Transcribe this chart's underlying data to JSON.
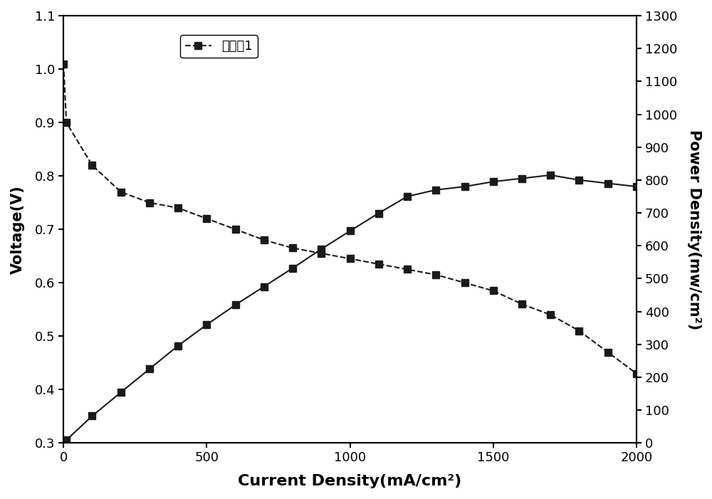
{
  "current_density_voltage": [
    0,
    10,
    100,
    200,
    300,
    400,
    500,
    600,
    700,
    800,
    900,
    1000,
    1100,
    1200,
    1300,
    1400,
    1500,
    1600,
    1700,
    1800,
    1900,
    2000
  ],
  "voltage": [
    1.01,
    0.9,
    0.82,
    0.77,
    0.75,
    0.74,
    0.72,
    0.7,
    0.68,
    0.665,
    0.655,
    0.645,
    0.635,
    0.625,
    0.615,
    0.6,
    0.585,
    0.56,
    0.54,
    0.51,
    0.47,
    0.43
  ],
  "current_density_power": [
    0,
    10,
    100,
    200,
    300,
    400,
    500,
    600,
    700,
    800,
    900,
    1000,
    1100,
    1200,
    1300,
    1400,
    1500,
    1600,
    1700,
    1800,
    1900,
    2000
  ],
  "power_density": [
    0,
    9,
    82,
    154,
    225,
    296,
    360,
    420,
    476,
    532,
    590,
    645,
    699,
    750,
    770,
    780,
    795,
    805,
    815,
    800,
    790,
    780
  ],
  "xlabel": "Current Density(mA/cm²)",
  "ylabel_left": "Voltage(V)",
  "ylabel_right": "Power Density(mw/cm²)",
  "ylim_left": [
    0.3,
    1.1
  ],
  "ylim_right": [
    0,
    1300
  ],
  "xlim": [
    0,
    2000
  ],
  "yticks_left": [
    0.3,
    0.4,
    0.5,
    0.6,
    0.7,
    0.8,
    0.9,
    1.0,
    1.1
  ],
  "yticks_right": [
    0,
    100,
    200,
    300,
    400,
    500,
    600,
    700,
    800,
    900,
    1000,
    1100,
    1200,
    1300
  ],
  "xticks": [
    0,
    500,
    1000,
    1500,
    2000
  ],
  "legend_label": "对比例1",
  "line_color": "#1a1a1a",
  "marker": "s",
  "marker_size": 7,
  "line_style_voltage": "--",
  "line_style_power": "-",
  "background_color": "#ffffff"
}
